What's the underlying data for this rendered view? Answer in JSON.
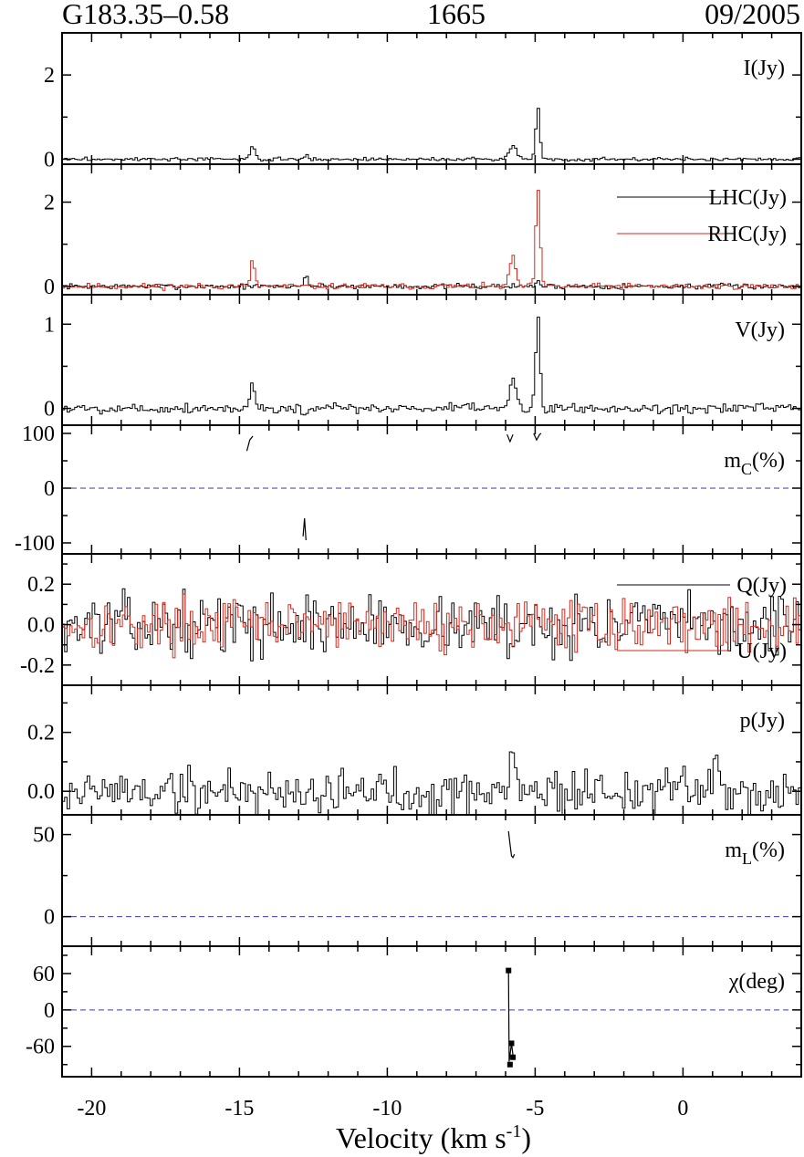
{
  "header": {
    "source": "G183.35–0.58",
    "frequency": "1665",
    "epoch": "09/2005"
  },
  "colors": {
    "black": "#000000",
    "red": "#d62a1e",
    "zero_line": "#3a3aa8"
  },
  "chart_data": {
    "type": "line",
    "x": {
      "label": "Velocity (km s",
      "label_sup": "-1",
      "label_close": ")",
      "lim": [
        -21,
        4
      ],
      "ticks": [
        -20,
        -15,
        -10,
        -5,
        0
      ]
    },
    "panels": [
      {
        "id": "I",
        "label": "I(Jy)",
        "ylim": [
          -0.12,
          3.0
        ],
        "yticks": [
          0,
          2
        ],
        "series": [
          {
            "name": "",
            "color": "#000000",
            "noise": 0.02,
            "seed": 3,
            "features": [
              [
                -14.6,
                0.3,
                0.08
              ],
              [
                -12.8,
                0.1,
                0.06
              ],
              [
                -5.8,
                0.35,
                0.12
              ],
              [
                -4.95,
                1.2,
                0.07
              ]
            ]
          }
        ]
      },
      {
        "id": "LHC_RHC",
        "legend": [
          {
            "name": "LHC(Jy)",
            "color": "#000000"
          },
          {
            "name": "RHC(Jy)",
            "color": "#d62a1e"
          }
        ],
        "ylim": [
          -0.2,
          2.9
        ],
        "yticks": [
          0,
          2
        ],
        "series": [
          {
            "name": "LHC(Jy)",
            "color": "#000000",
            "noise": 0.03,
            "seed": 7,
            "features": [
              [
                -12.8,
                0.3,
                0.06
              ],
              [
                -4.95,
                0.15,
                0.06
              ]
            ]
          },
          {
            "name": "RHC(Jy)",
            "color": "#d62a1e",
            "noise": 0.035,
            "seed": 11,
            "features": [
              [
                -14.6,
                0.6,
                0.07
              ],
              [
                -5.8,
                0.7,
                0.1
              ],
              [
                -4.95,
                2.35,
                0.07
              ]
            ]
          }
        ]
      },
      {
        "id": "V",
        "label": "V(Jy)",
        "ylim": [
          -0.2,
          1.35
        ],
        "yticks": [
          0,
          1
        ],
        "series": [
          {
            "name": "",
            "color": "#000000",
            "noise": 0.03,
            "seed": 5,
            "features": [
              [
                -14.6,
                0.3,
                0.07
              ],
              [
                -12.8,
                -0.12,
                0.06
              ],
              [
                -5.8,
                0.35,
                0.1
              ],
              [
                -4.95,
                1.15,
                0.07
              ]
            ]
          }
        ]
      },
      {
        "id": "mc",
        "label": "m",
        "label_sub": "C",
        "label_tail": "(%)",
        "ylim": [
          -120,
          115
        ],
        "yticks": [
          100,
          0,
          -100
        ],
        "zero_line": true,
        "segments": [
          [
            [
              -14.75,
              68
            ],
            [
              -14.65,
              88
            ],
            [
              -14.55,
              95
            ]
          ],
          [
            [
              -12.85,
              -88
            ],
            [
              -12.8,
              -55
            ],
            [
              -12.75,
              -95
            ]
          ],
          [
            [
              -5.95,
              98
            ],
            [
              -5.85,
              85
            ],
            [
              -5.75,
              98
            ]
          ],
          [
            [
              -5.05,
              100
            ],
            [
              -4.95,
              88
            ],
            [
              -4.85,
              98
            ],
            [
              -4.8,
              100
            ]
          ]
        ]
      },
      {
        "id": "QU",
        "legend": [
          {
            "name": "Q(Jy)",
            "color": "#000000"
          },
          {
            "name": "U(Jy)",
            "color": "#d62a1e"
          }
        ],
        "ylim": [
          -0.3,
          0.35
        ],
        "yticks": [
          0.2,
          0.0,
          -0.2
        ],
        "tick_decimals": 1,
        "series": [
          {
            "name": "Q(Jy)",
            "color": "#000000",
            "noise": 0.07,
            "seed": 13,
            "features": [
              [
                -5.8,
                -0.18,
                0.08
              ]
            ]
          },
          {
            "name": "U(Jy)",
            "color": "#d62a1e",
            "noise": 0.06,
            "seed": 17,
            "features": []
          }
        ]
      },
      {
        "id": "p",
        "label": "p(Jy)",
        "ylim": [
          -0.08,
          0.36
        ],
        "yticks": [
          0.2,
          0.0
        ],
        "tick_decimals": 1,
        "series": [
          {
            "name": "",
            "color": "#000000",
            "noise": 0.04,
            "seed": 19,
            "features": [
              [
                -5.75,
                0.15,
                0.08
              ],
              [
                1.1,
                0.1,
                0.08
              ]
            ]
          }
        ]
      },
      {
        "id": "mL",
        "label": "m",
        "label_sub": "L",
        "label_tail": "(%)",
        "ylim": [
          -18,
          62
        ],
        "yticks": [
          50,
          0
        ],
        "zero_line": true,
        "segments": [
          [
            [
              -5.9,
              52
            ],
            [
              -5.85,
              44
            ],
            [
              -5.8,
              37
            ],
            [
              -5.75,
              36
            ],
            [
              -5.7,
              38
            ]
          ]
        ]
      },
      {
        "id": "chi",
        "label": "χ(deg)",
        "ylim": [
          -110,
          105
        ],
        "yticks": [
          60,
          0,
          -60
        ],
        "zero_line": true,
        "segments": [
          [
            [
              -5.9,
              65
            ],
            [
              -5.88,
              -85
            ],
            [
              -5.8,
              -55
            ],
            [
              -5.75,
              -75
            ],
            [
              -5.7,
              -82
            ]
          ]
        ],
        "markers": [
          [
            -5.9,
            65
          ],
          [
            -5.85,
            -90
          ],
          [
            -5.8,
            -55
          ],
          [
            -5.75,
            -78
          ]
        ]
      }
    ]
  }
}
